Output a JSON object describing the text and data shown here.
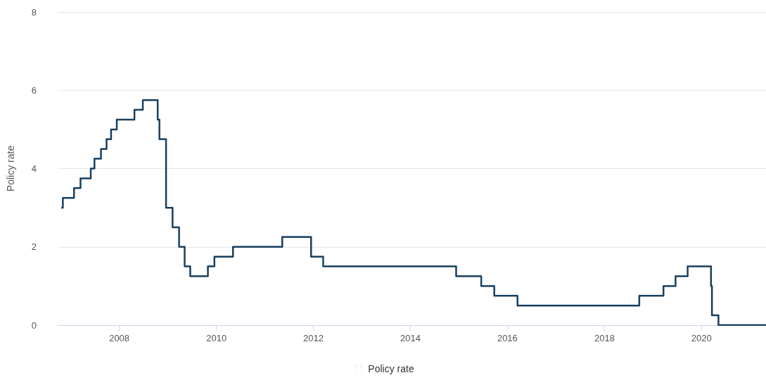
{
  "chart_data": {
    "type": "step",
    "ylabel": "Policy rate",
    "x": [
      "2006-10-26",
      "2006-11-02",
      "2007-01-25",
      "2007-03-15",
      "2007-05-31",
      "2007-06-28",
      "2007-08-16",
      "2007-09-27",
      "2007-10-31",
      "2007-12-13",
      "2008-04-24",
      "2008-06-26",
      "2008-10-16",
      "2008-10-29",
      "2008-12-18",
      "2009-02-05",
      "2009-03-26",
      "2009-05-07",
      "2009-06-18",
      "2009-10-29",
      "2009-12-17",
      "2010-05-06",
      "2011-05-12",
      "2011-12-15",
      "2012-03-15",
      "2014-12-11",
      "2015-06-18",
      "2015-09-24",
      "2016-03-17",
      "2018-09-20",
      "2019-03-21",
      "2019-06-20",
      "2019-09-19",
      "2020-03-13",
      "2020-03-20",
      "2020-05-08",
      "2021-05-01"
    ],
    "series": [
      {
        "name": "Policy rate",
        "color": "#173f5f",
        "values": [
          3.0,
          3.25,
          3.5,
          3.75,
          4.0,
          4.25,
          4.5,
          4.75,
          5.0,
          5.25,
          5.5,
          5.75,
          5.25,
          4.75,
          3.0,
          2.5,
          2.0,
          1.5,
          1.25,
          1.5,
          1.75,
          2.0,
          2.25,
          1.75,
          1.5,
          1.25,
          1.0,
          0.75,
          0.5,
          0.75,
          1.0,
          1.25,
          1.5,
          1.0,
          0.25,
          0.0,
          0.0
        ]
      }
    ],
    "xlim": [
      "2006-09-24",
      "2021-05-01"
    ],
    "xticks": [
      {
        "value": "2008-01-01",
        "label": "2008"
      },
      {
        "value": "2010-01-01",
        "label": "2010"
      },
      {
        "value": "2012-01-01",
        "label": "2012"
      },
      {
        "value": "2014-01-01",
        "label": "2014"
      },
      {
        "value": "2016-01-01",
        "label": "2016"
      },
      {
        "value": "2018-01-01",
        "label": "2018"
      },
      {
        "value": "2020-01-01",
        "label": "2020"
      }
    ],
    "ylim": [
      0,
      8
    ],
    "yticks": [
      0,
      2,
      4,
      6,
      8
    ],
    "grid": "y",
    "legend": "bottom",
    "marker": "none",
    "line_style": "solid"
  }
}
